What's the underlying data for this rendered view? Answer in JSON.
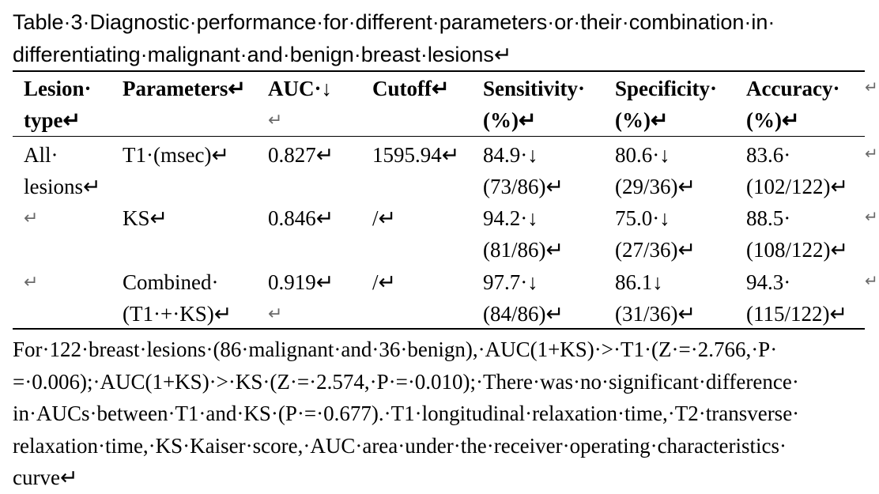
{
  "title": {
    "line1": "Table·3·Diagnostic·performance·for·different·parameters·or·their·combination·in·",
    "line2": "differentiating·malignant·and·benign·breast·lesions↵"
  },
  "table": {
    "headers": {
      "lesion_type": [
        "Lesion·",
        "type↵"
      ],
      "parameters": [
        "Parameters↵"
      ],
      "auc": [
        "AUC·↓",
        "↵"
      ],
      "cutoff": [
        "Cutoff↵"
      ],
      "sensitivity": [
        "Sensitivity·",
        "(%)↵"
      ],
      "specificity": [
        "Specificity·",
        "(%)↵"
      ],
      "accuracy": [
        "Accuracy·",
        "(%)↵"
      ]
    },
    "rows": [
      {
        "lesion_type": [
          "All·",
          "lesions↵"
        ],
        "parameters": [
          "T1·(msec)↵"
        ],
        "auc": [
          "0.827↵"
        ],
        "cutoff": [
          "1595.94↵"
        ],
        "sensitivity": [
          "84.9·↓",
          "(73/86)↵"
        ],
        "specificity": [
          "80.6·↓",
          "(29/36)↵"
        ],
        "accuracy": [
          "83.6·",
          "(102/122)↵"
        ]
      },
      {
        "lesion_type": [
          "↵"
        ],
        "parameters": [
          "KS↵"
        ],
        "auc": [
          "0.846↵"
        ],
        "cutoff": [
          "/↵"
        ],
        "sensitivity": [
          "94.2·↓",
          "(81/86)↵"
        ],
        "specificity": [
          "75.0·↓",
          "(27/36)↵"
        ],
        "accuracy": [
          "88.5·",
          "(108/122)↵"
        ]
      },
      {
        "lesion_type": [
          "↵"
        ],
        "parameters": [
          "Combined·",
          "(T1·+·KS)↵"
        ],
        "auc": [
          "0.919↵",
          "↵"
        ],
        "cutoff": [
          "/↵"
        ],
        "sensitivity": [
          "97.7·↓",
          "(84/86)↵"
        ],
        "specificity": [
          "86.1↓",
          "(31/36)↵"
        ],
        "accuracy": [
          "94.3·",
          "(115/122)↵"
        ]
      }
    ],
    "row_end_mark": "↵"
  },
  "footnote": {
    "line1": "For·122·breast·lesions·(86·malignant·and·36·benign),·AUC(1+KS)·>·T1·(Z·=·2.766,·P·",
    "line2": "=·0.006);·AUC(1+KS)·>·KS·(Z·=·2.574,·P·=·0.010);·There·was·no·significant·difference·",
    "line3": "in·AUCs·between·T1·and·KS·(P·=·0.677).·T1·longitudinal·relaxation·time,·T2·transverse·",
    "line4": "relaxation·time,·KS·Kaiser·score,·AUC·area·under·the·receiver·operating·characteristics·",
    "line5": "curve↵"
  }
}
